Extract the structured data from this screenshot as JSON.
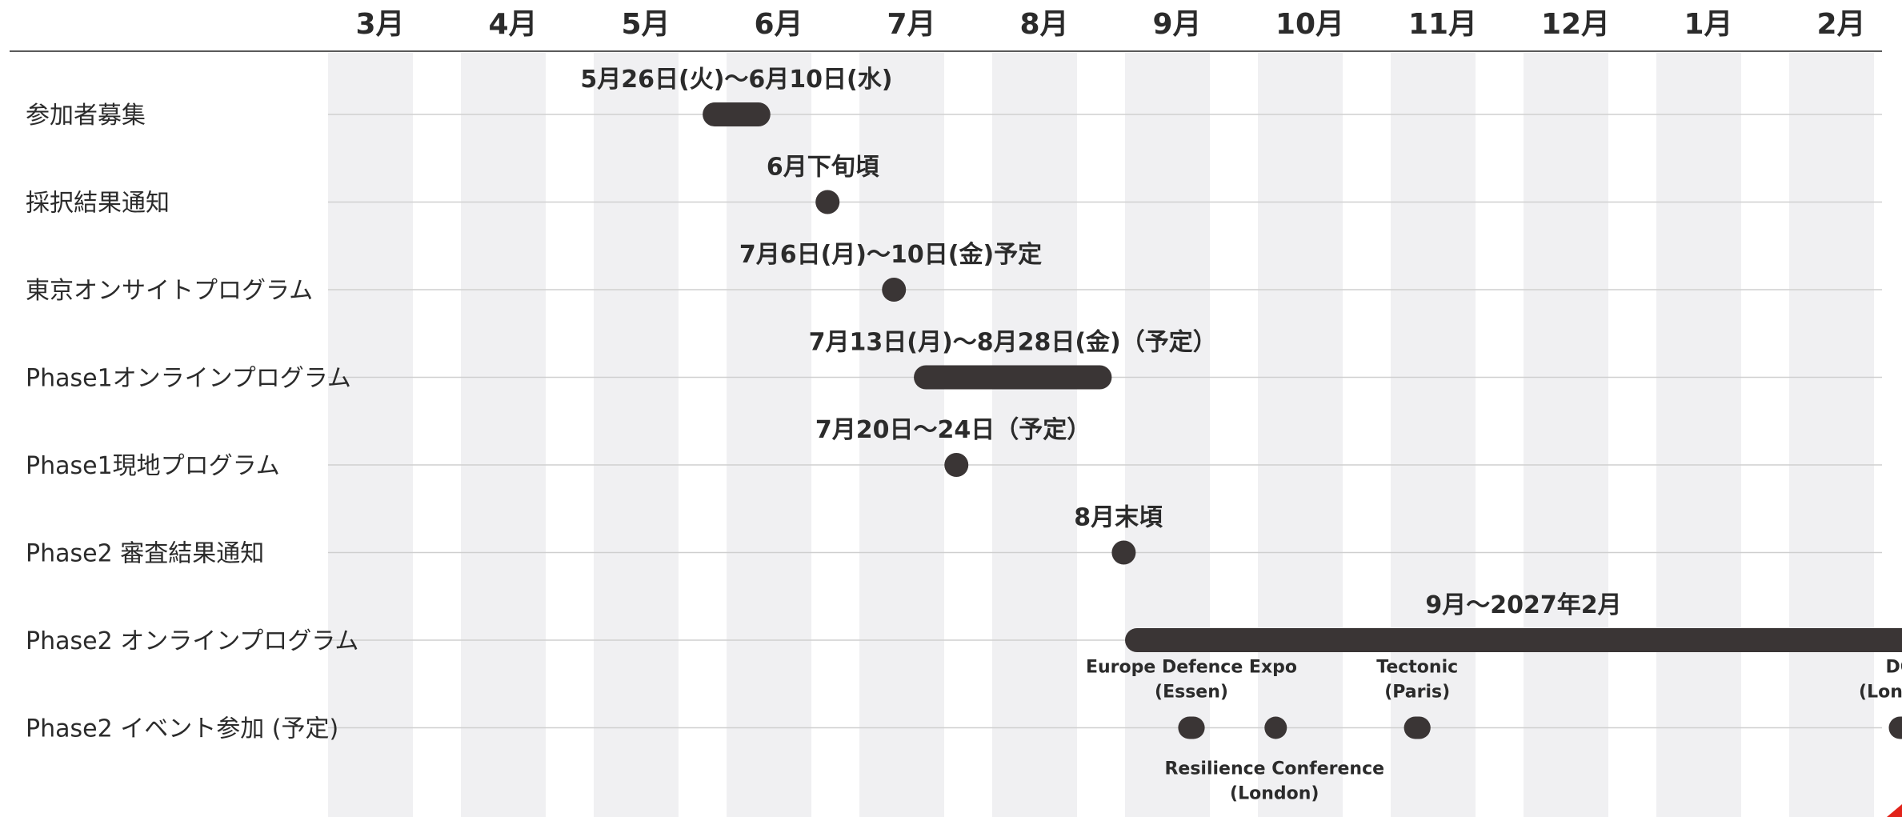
{
  "chart_data": {
    "type": "gantt",
    "months": [
      "3月",
      "4月",
      "5月",
      "6月",
      "7月",
      "8月",
      "9月",
      "10月",
      "11月",
      "12月",
      "1月",
      "2月"
    ],
    "rows": [
      {
        "label": "参加者募集",
        "bars": [
          {
            "start": 2.82,
            "end": 3.33,
            "label": "5月26日(火)〜6月10日(水)"
          }
        ]
      },
      {
        "label": "採択結果通知",
        "bars": [
          {
            "start": 3.67,
            "end": 3.78,
            "label": "6月下旬頃"
          }
        ]
      },
      {
        "label": "東京オンサイトプログラム",
        "bars": [
          {
            "start": 4.17,
            "end": 4.3,
            "label": "7月6日(月)〜10日(金)予定"
          }
        ]
      },
      {
        "label": "Phase1オンラインプログラム",
        "bars": [
          {
            "start": 4.41,
            "end": 5.9,
            "label": "7月13日(月)〜8月28日(金)（予定）"
          }
        ]
      },
      {
        "label": "Phase1現地プログラム",
        "bars": [
          {
            "start": 4.64,
            "end": 4.77,
            "label": "7月20日〜24日（予定）"
          }
        ]
      },
      {
        "label": "Phase2 審査結果通知",
        "bars": [
          {
            "start": 5.9,
            "end": 6.0,
            "label": "8月末頃"
          }
        ]
      },
      {
        "label": "Phase2 オンラインプログラム",
        "bars": [
          {
            "start": 6.0,
            "end": 12.0,
            "label": "9月〜2027年2月"
          }
        ]
      },
      {
        "label": "Phase2 イベント参加 (予定)",
        "events": [
          {
            "start": 6.4,
            "end": 6.6,
            "label": [
              "Europe Defence Expo",
              "(Essen)"
            ],
            "label_pos": "above"
          },
          {
            "start": 7.05,
            "end": 7.2,
            "label": [
              "Resilience Conference",
              "(London)"
            ],
            "label_pos": "below"
          },
          {
            "start": 8.1,
            "end": 8.3,
            "label": [
              "Tectonic",
              "(Paris)"
            ],
            "label_pos": "above"
          },
          {
            "start": 11.75,
            "end": 11.97,
            "label": [
              "DGI",
              "(London)"
            ],
            "label_pos": "above"
          }
        ]
      }
    ],
    "colors": {
      "bar": "#3a3535",
      "band": "#f0f0f2",
      "grid": "#cfcfcf",
      "text": "#2b2b2b",
      "accent": "#e2231a"
    }
  }
}
